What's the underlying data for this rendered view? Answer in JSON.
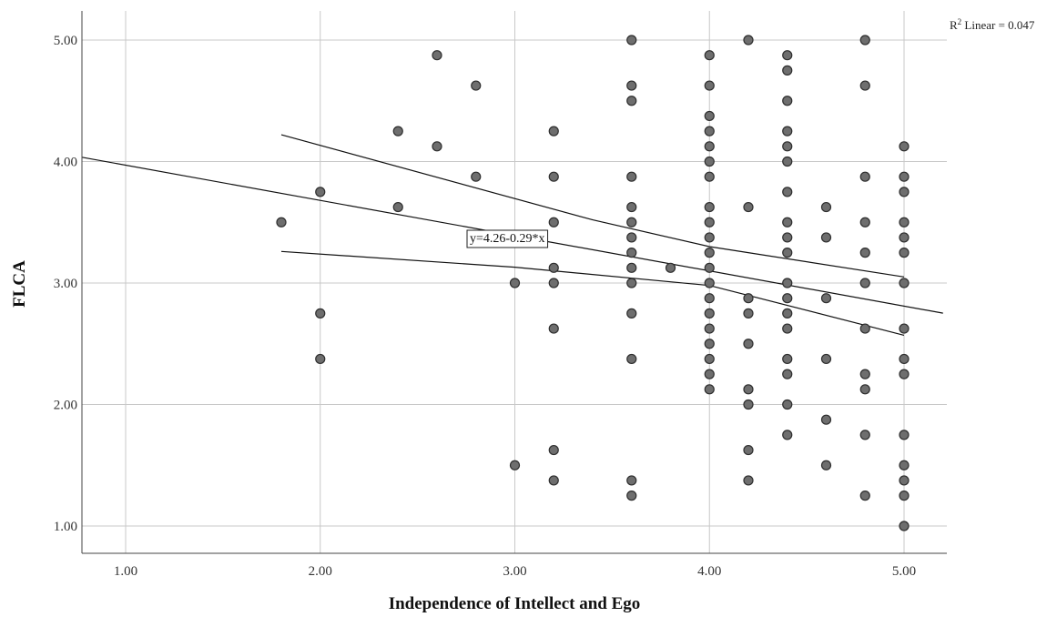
{
  "chart_data": {
    "type": "scatter",
    "xlabel": "Independence of Intellect and Ego",
    "ylabel": "FLCA",
    "xlim": [
      0.8,
      5.2
    ],
    "ylim": [
      0.8,
      5.25
    ],
    "xticks": [
      1,
      2,
      3,
      4,
      5
    ],
    "yticks": [
      1,
      2,
      3,
      4,
      5
    ],
    "xtick_labels": [
      "1.00",
      "2.00",
      "3.00",
      "4.00",
      "5.00"
    ],
    "ytick_labels": [
      "1.00",
      "2.00",
      "3.00",
      "4.00",
      "5.00"
    ],
    "grid": true,
    "annotation": {
      "r2_label": "R",
      "r2_sup": "2",
      "r2_text": " Linear = 0.047"
    },
    "fit": {
      "equation": "y=4.26-0.29*x",
      "intercept": 4.26,
      "slope": -0.29,
      "x_range": [
        0.8,
        5.2
      ]
    },
    "confidence_band": {
      "upper": [
        [
          1.8,
          4.22
        ],
        [
          3.4,
          3.52
        ],
        [
          4.0,
          3.3
        ],
        [
          5.0,
          3.05
        ]
      ],
      "lower": [
        [
          1.8,
          3.26
        ],
        [
          3.0,
          3.13
        ],
        [
          4.0,
          2.98
        ],
        [
          5.0,
          2.57
        ]
      ]
    },
    "points": [
      [
        1.8,
        3.5
      ],
      [
        2.0,
        3.75
      ],
      [
        2.0,
        2.75
      ],
      [
        2.0,
        2.375
      ],
      [
        2.4,
        4.25
      ],
      [
        2.4,
        3.625
      ],
      [
        2.6,
        4.875
      ],
      [
        2.6,
        4.125
      ],
      [
        2.8,
        4.625
      ],
      [
        2.8,
        3.875
      ],
      [
        3.0,
        3.0
      ],
      [
        3.0,
        1.5
      ],
      [
        3.2,
        4.25
      ],
      [
        3.2,
        3.875
      ],
      [
        3.2,
        3.5
      ],
      [
        3.2,
        3.125
      ],
      [
        3.2,
        3.0
      ],
      [
        3.2,
        2.625
      ],
      [
        3.2,
        1.625
      ],
      [
        3.2,
        1.375
      ],
      [
        3.6,
        5.0
      ],
      [
        3.6,
        4.625
      ],
      [
        3.6,
        4.5
      ],
      [
        3.6,
        3.875
      ],
      [
        3.6,
        3.625
      ],
      [
        3.6,
        3.5
      ],
      [
        3.6,
        3.375
      ],
      [
        3.6,
        3.25
      ],
      [
        3.6,
        3.125
      ],
      [
        3.6,
        3.0
      ],
      [
        3.6,
        2.75
      ],
      [
        3.6,
        2.375
      ],
      [
        3.6,
        1.375
      ],
      [
        3.6,
        1.25
      ],
      [
        3.8,
        3.125
      ],
      [
        4.0,
        4.875
      ],
      [
        4.0,
        4.625
      ],
      [
        4.0,
        4.375
      ],
      [
        4.0,
        4.25
      ],
      [
        4.0,
        4.125
      ],
      [
        4.0,
        4.0
      ],
      [
        4.0,
        3.875
      ],
      [
        4.0,
        3.625
      ],
      [
        4.0,
        3.5
      ],
      [
        4.0,
        3.375
      ],
      [
        4.0,
        3.25
      ],
      [
        4.0,
        3.125
      ],
      [
        4.0,
        3.0
      ],
      [
        4.0,
        2.875
      ],
      [
        4.0,
        2.75
      ],
      [
        4.0,
        2.625
      ],
      [
        4.0,
        2.5
      ],
      [
        4.0,
        2.375
      ],
      [
        4.0,
        2.25
      ],
      [
        4.0,
        2.125
      ],
      [
        4.2,
        5.0
      ],
      [
        4.2,
        3.625
      ],
      [
        4.2,
        2.875
      ],
      [
        4.2,
        2.75
      ],
      [
        4.2,
        2.5
      ],
      [
        4.2,
        2.125
      ],
      [
        4.2,
        2.0
      ],
      [
        4.2,
        1.625
      ],
      [
        4.2,
        1.375
      ],
      [
        4.4,
        4.875
      ],
      [
        4.4,
        4.75
      ],
      [
        4.4,
        4.5
      ],
      [
        4.4,
        4.25
      ],
      [
        4.4,
        4.125
      ],
      [
        4.4,
        4.0
      ],
      [
        4.4,
        3.75
      ],
      [
        4.4,
        3.5
      ],
      [
        4.4,
        3.375
      ],
      [
        4.4,
        3.25
      ],
      [
        4.4,
        3.0
      ],
      [
        4.4,
        2.875
      ],
      [
        4.4,
        2.75
      ],
      [
        4.4,
        2.625
      ],
      [
        4.4,
        2.375
      ],
      [
        4.4,
        2.25
      ],
      [
        4.4,
        2.0
      ],
      [
        4.4,
        1.75
      ],
      [
        4.6,
        3.625
      ],
      [
        4.6,
        3.375
      ],
      [
        4.6,
        2.875
      ],
      [
        4.6,
        2.375
      ],
      [
        4.6,
        1.875
      ],
      [
        4.6,
        1.5
      ],
      [
        4.8,
        5.0
      ],
      [
        4.8,
        4.625
      ],
      [
        4.8,
        3.875
      ],
      [
        4.8,
        3.5
      ],
      [
        4.8,
        3.25
      ],
      [
        4.8,
        3.0
      ],
      [
        4.8,
        2.625
      ],
      [
        4.8,
        2.25
      ],
      [
        4.8,
        2.125
      ],
      [
        4.8,
        1.75
      ],
      [
        4.8,
        1.25
      ],
      [
        5.0,
        4.125
      ],
      [
        5.0,
        3.875
      ],
      [
        5.0,
        3.75
      ],
      [
        5.0,
        3.5
      ],
      [
        5.0,
        3.375
      ],
      [
        5.0,
        3.25
      ],
      [
        5.0,
        3.0
      ],
      [
        5.0,
        2.625
      ],
      [
        5.0,
        2.375
      ],
      [
        5.0,
        2.25
      ],
      [
        5.0,
        1.75
      ],
      [
        5.0,
        1.5
      ],
      [
        5.0,
        1.375
      ],
      [
        5.0,
        1.25
      ],
      [
        5.0,
        1.0
      ]
    ]
  }
}
